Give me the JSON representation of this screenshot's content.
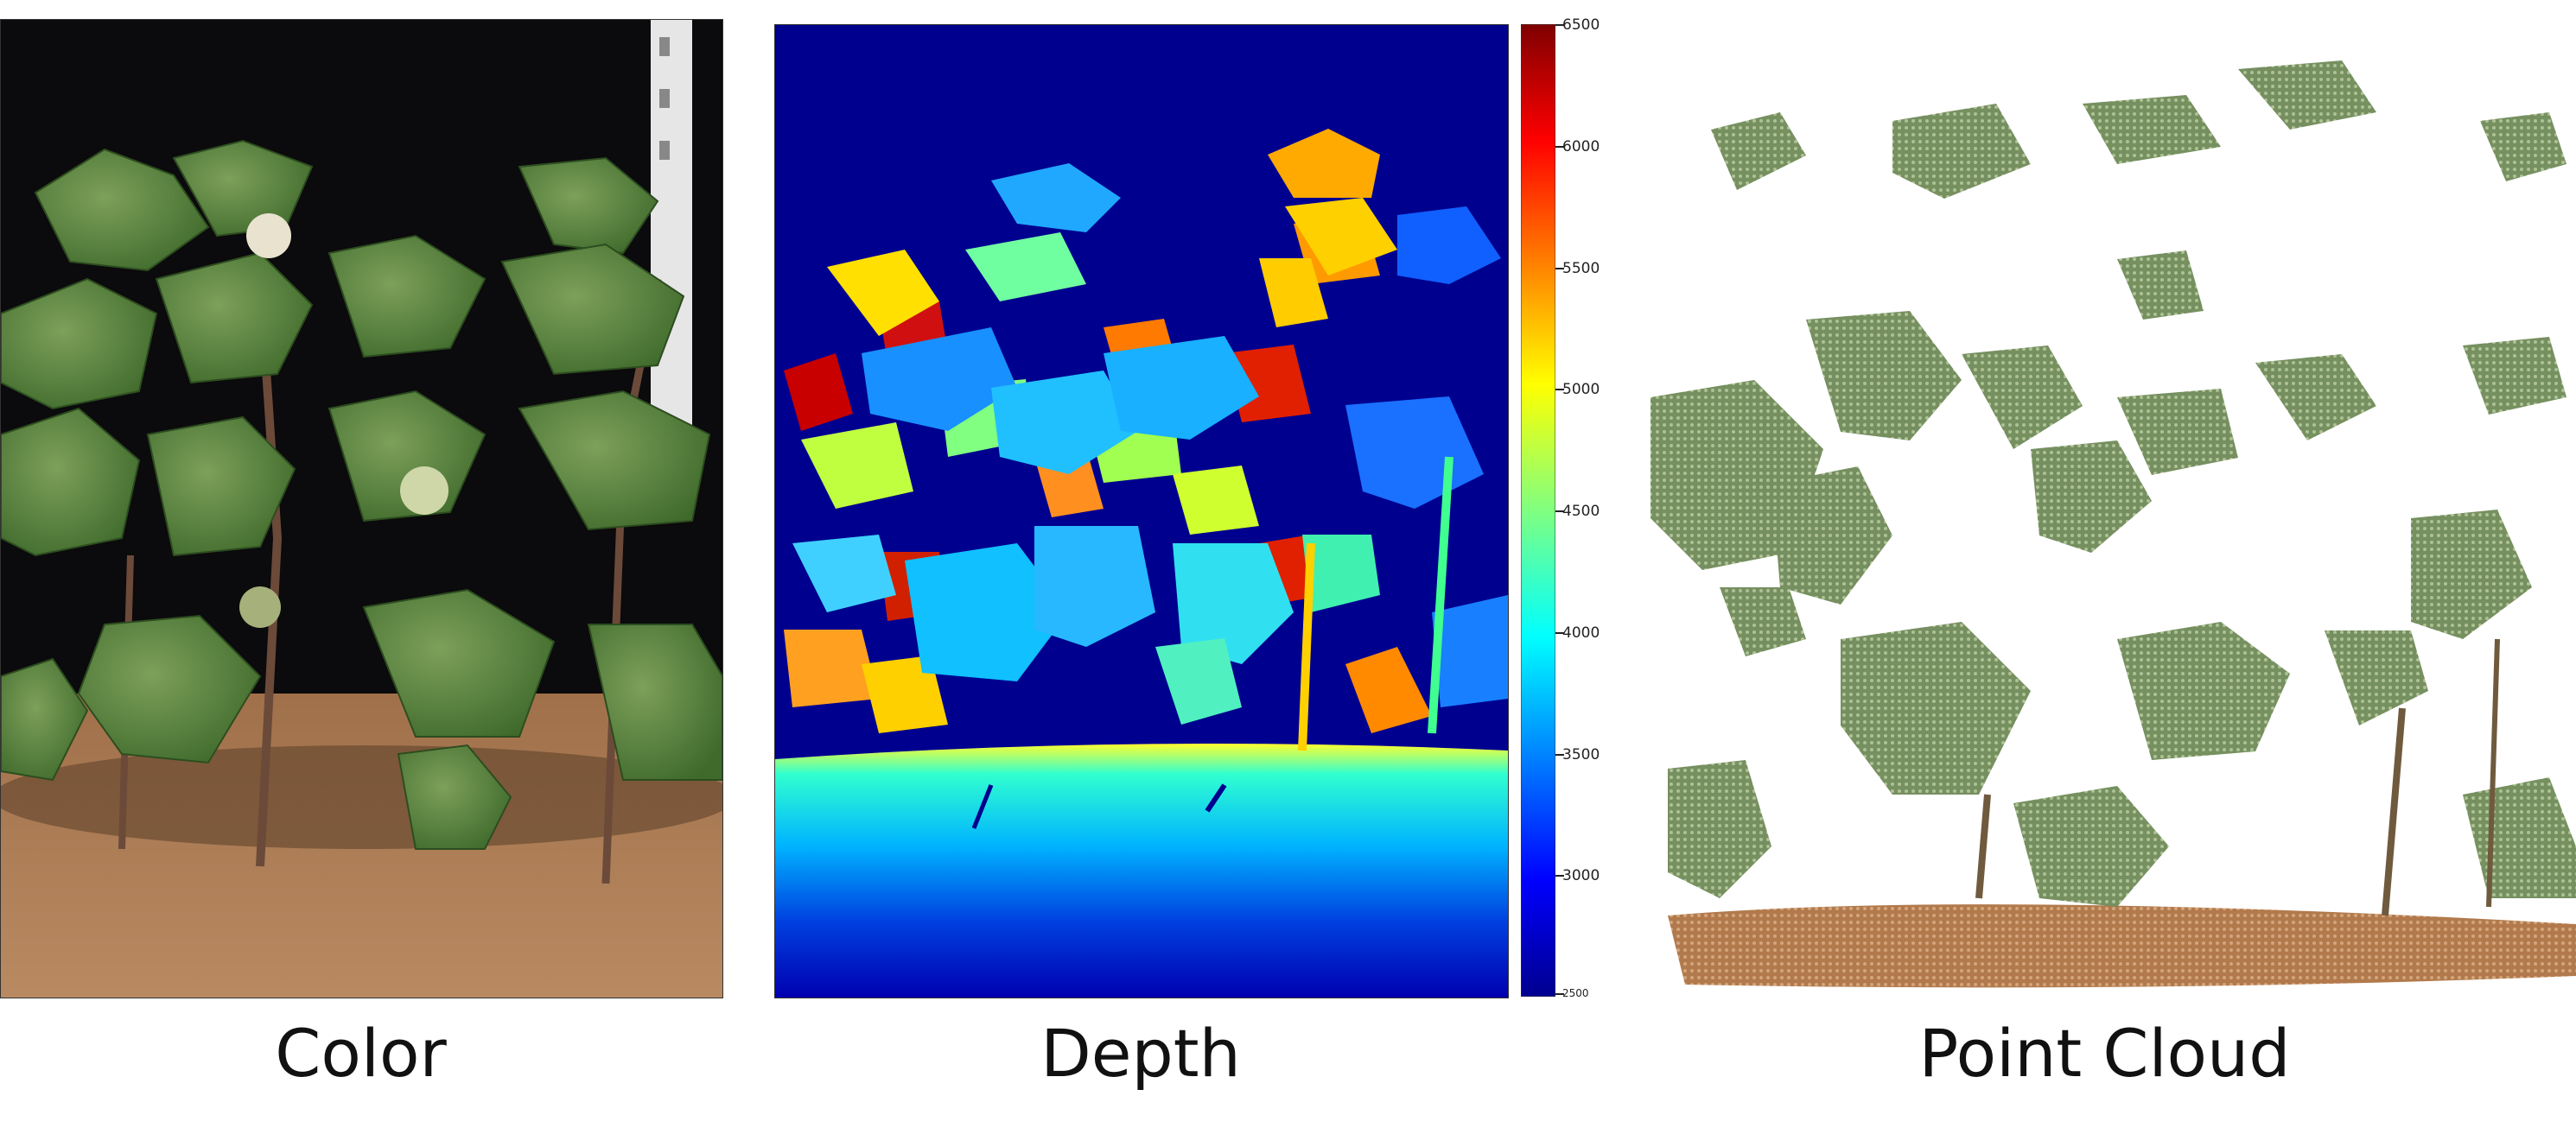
{
  "panels": [
    {
      "key": "color",
      "caption": "Color"
    },
    {
      "key": "depth",
      "caption": "Depth"
    },
    {
      "key": "point_cloud",
      "caption": "Point Cloud"
    }
  ],
  "colorbar": {
    "ticks": [
      "6500",
      "6000",
      "5500",
      "5000",
      "4500",
      "4000",
      "3500",
      "3000",
      "2500"
    ],
    "colormap": "jet",
    "colors": {
      "low": "#00008f",
      "mid": "#00ffff",
      "high": "#7f0000"
    }
  }
}
